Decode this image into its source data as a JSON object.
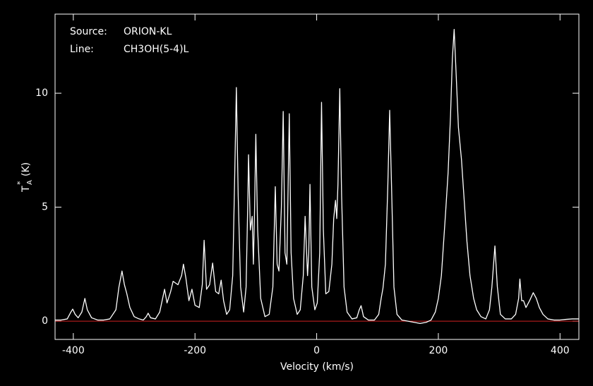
{
  "chart_data": {
    "type": "line",
    "annotations": [
      {
        "label": "Source:",
        "value": "ORION-KL"
      },
      {
        "label": "Line:",
        "value": "CH3OH(5-4)L"
      }
    ],
    "x_label": "Velocity (km/s)",
    "y_label": {
      "main": "T",
      "sup": "*",
      "sub": "A",
      "unit": "(K)"
    },
    "color": "#ffffff",
    "reference_line": 0,
    "reference_color": "#d02020",
    "xlim": [
      -430,
      431
    ],
    "ylim": [
      -0.8,
      13.47
    ],
    "xticks": [
      -400,
      -200,
      0,
      200,
      400
    ],
    "yticks": [
      0,
      5,
      10
    ],
    "x": [
      -430,
      -420,
      -410,
      -404,
      -401,
      -397,
      -392,
      -386,
      -381,
      -377,
      -370,
      -360,
      -350,
      -340,
      -330,
      -325,
      -320,
      -316,
      -312,
      -307,
      -300,
      -292,
      -285,
      -280,
      -277,
      -273,
      -265,
      -258,
      -250,
      -246,
      -240,
      -236,
      -228,
      -222,
      -219,
      -215,
      -210,
      -205,
      -200,
      -193,
      -188,
      -185,
      -181,
      -176,
      -171,
      -166,
      -161,
      -157,
      -153,
      -148,
      -143,
      -138,
      -135,
      -132,
      -129,
      -125,
      -120,
      -116,
      -113,
      -112,
      -109,
      -106,
      -104,
      -102,
      -100,
      -97,
      -92,
      -85,
      -78,
      -72,
      -68,
      -65,
      -62,
      -58,
      -55,
      -52,
      -49,
      -45,
      -42,
      -38,
      -32,
      -27,
      -22,
      -19,
      -15,
      -13,
      -11,
      -8,
      -3,
      1,
      5,
      8,
      11,
      15,
      20,
      25,
      28,
      31,
      33,
      35,
      38,
      41,
      45,
      50,
      58,
      66,
      70,
      73,
      77,
      85,
      95,
      102,
      106,
      109,
      113,
      117,
      120,
      123,
      127,
      132,
      140,
      150,
      160,
      170,
      180,
      188,
      195,
      200,
      205,
      210,
      212,
      216,
      220,
      223,
      226,
      229,
      233,
      238,
      242,
      247,
      252,
      258,
      263,
      270,
      278,
      284,
      288,
      293,
      297,
      302,
      310,
      320,
      327,
      332,
      334,
      337,
      340,
      344,
      350,
      356,
      361,
      366,
      372,
      380,
      390,
      400,
      410,
      420,
      431
    ],
    "values": [
      0.05,
      0.05,
      0.1,
      0.4,
      0.53,
      0.3,
      0.15,
      0.4,
      1.0,
      0.5,
      0.15,
      0.05,
      0.05,
      0.1,
      0.5,
      1.5,
      2.2,
      1.6,
      1.2,
      0.6,
      0.2,
      0.1,
      0.05,
      0.2,
      0.35,
      0.15,
      0.1,
      0.4,
      1.4,
      0.8,
      1.3,
      1.75,
      1.6,
      2.0,
      2.5,
      1.9,
      0.9,
      1.4,
      0.7,
      0.6,
      1.6,
      3.55,
      1.4,
      1.6,
      2.55,
      1.3,
      1.2,
      1.8,
      0.9,
      0.3,
      0.5,
      2.0,
      6.0,
      10.25,
      5.5,
      1.5,
      0.4,
      1.5,
      5.5,
      7.3,
      4.0,
      4.6,
      2.5,
      5.0,
      8.2,
      4.0,
      1.0,
      0.2,
      0.3,
      1.5,
      5.9,
      2.5,
      2.2,
      5.0,
      9.2,
      3.0,
      2.5,
      9.1,
      3.0,
      1.0,
      0.3,
      0.5,
      2.0,
      4.6,
      2.0,
      3.0,
      6.0,
      1.5,
      0.5,
      0.8,
      3.0,
      9.6,
      4.0,
      1.2,
      1.3,
      2.5,
      4.5,
      5.3,
      4.5,
      6.0,
      10.2,
      5.5,
      1.5,
      0.4,
      0.1,
      0.15,
      0.5,
      0.68,
      0.2,
      0.05,
      0.05,
      0.3,
      1.0,
      1.45,
      2.5,
      6.0,
      9.25,
      6.0,
      1.5,
      0.3,
      0.05,
      0,
      -0.05,
      -0.1,
      -0.05,
      0.05,
      0.4,
      1.0,
      2.0,
      4.0,
      4.8,
      6.5,
      9.0,
      11.5,
      12.8,
      11.0,
      8.5,
      7.1,
      5.5,
      3.5,
      2.0,
      1.0,
      0.5,
      0.2,
      0.1,
      0.5,
      1.5,
      3.3,
      1.5,
      0.3,
      0.1,
      0.1,
      0.3,
      1.0,
      1.85,
      0.9,
      0.9,
      0.6,
      0.9,
      1.25,
      1.0,
      0.6,
      0.3,
      0.1,
      0.05,
      0.05,
      0.08,
      0.1,
      0.1
    ]
  }
}
